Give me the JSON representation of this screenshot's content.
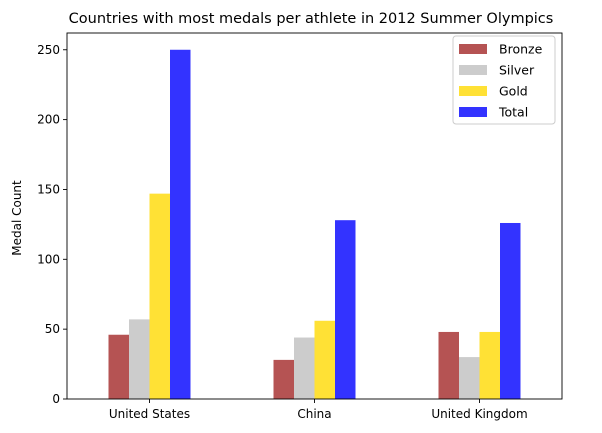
{
  "chart_data": {
    "type": "bar",
    "title": "Countries with most medals per athlete in 2012 Summer Olympics",
    "xlabel": "",
    "ylabel": "Medal Count",
    "categories": [
      "United States",
      "China",
      "United Kingdom"
    ],
    "series": [
      {
        "name": "Bronze",
        "color": "#b55353",
        "values": [
          46,
          28,
          48
        ]
      },
      {
        "name": "Silver",
        "color": "#cccccc",
        "values": [
          57,
          44,
          30
        ]
      },
      {
        "name": "Gold",
        "color": "#ffe135",
        "values": [
          147,
          56,
          48
        ]
      },
      {
        "name": "Total",
        "color": "#3333ff",
        "values": [
          250,
          128,
          126
        ]
      }
    ],
    "ylim": [
      0,
      262
    ],
    "yticks": [
      0,
      50,
      100,
      150,
      200,
      250
    ],
    "grid": false,
    "legend_position": "top-right"
  }
}
